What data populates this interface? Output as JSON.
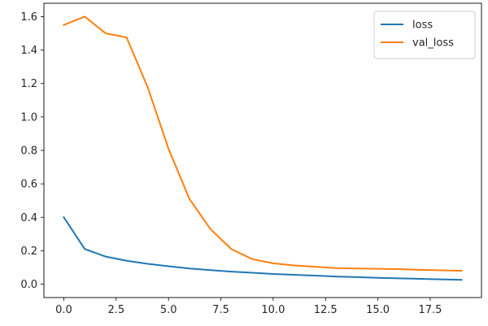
{
  "chart_data": {
    "type": "line",
    "title": "",
    "xlabel": "",
    "ylabel": "",
    "xlim": [
      -0.95,
      19.95
    ],
    "ylim": [
      -0.08,
      1.68
    ],
    "x_ticks": [
      0.0,
      2.5,
      5.0,
      7.5,
      10.0,
      12.5,
      15.0,
      17.5
    ],
    "x_tick_labels": [
      "0.0",
      "2.5",
      "5.0",
      "7.5",
      "10.0",
      "12.5",
      "15.0",
      "17.5"
    ],
    "y_ticks": [
      0.0,
      0.2,
      0.4,
      0.6,
      0.8,
      1.0,
      1.2,
      1.4,
      1.6
    ],
    "y_tick_labels": [
      "0.0",
      "0.2",
      "0.4",
      "0.6",
      "0.8",
      "1.0",
      "1.2",
      "1.4",
      "1.6"
    ],
    "grid": false,
    "legend_position": "top-right",
    "x": [
      0,
      1,
      2,
      3,
      4,
      5,
      6,
      7,
      8,
      9,
      10,
      11,
      12,
      13,
      14,
      15,
      16,
      17,
      18,
      19
    ],
    "series": [
      {
        "name": "loss",
        "color": "#1f77b4",
        "values": [
          0.4,
          0.21,
          0.165,
          0.14,
          0.122,
          0.107,
          0.094,
          0.084,
          0.075,
          0.068,
          0.061,
          0.056,
          0.051,
          0.046,
          0.042,
          0.038,
          0.035,
          0.032,
          0.029,
          0.026
        ]
      },
      {
        "name": "val_loss",
        "color": "#ff7f0e",
        "values": [
          1.55,
          1.6,
          1.5,
          1.475,
          1.18,
          0.81,
          0.51,
          0.33,
          0.21,
          0.15,
          0.125,
          0.112,
          0.104,
          0.096,
          0.094,
          0.092,
          0.09,
          0.086,
          0.083,
          0.08
        ]
      }
    ]
  }
}
